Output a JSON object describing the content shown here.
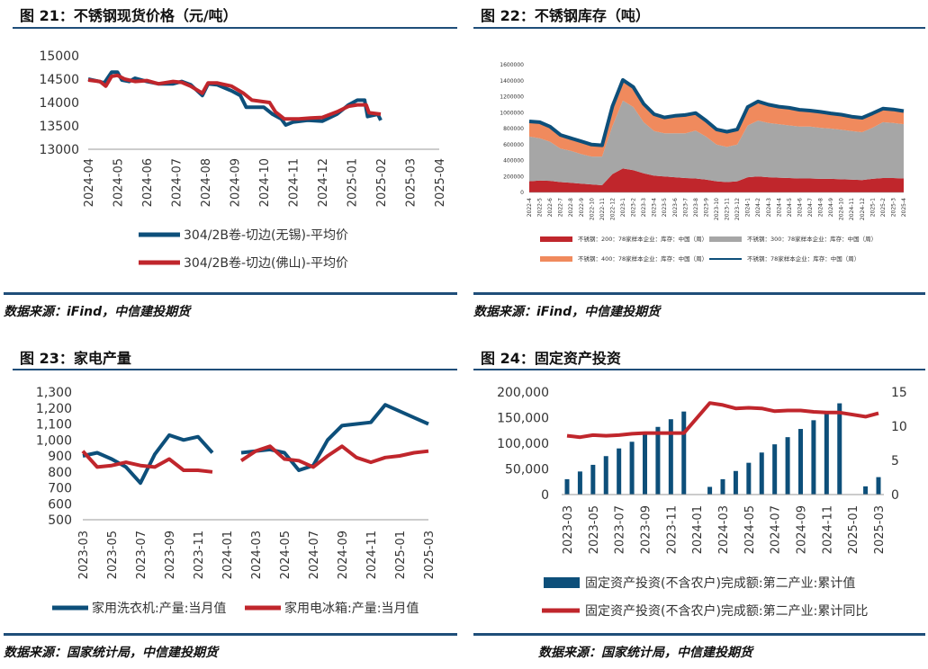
{
  "panels": {
    "p21": {
      "title": "图 21：不锈钢现货价格（元/吨）",
      "source": "数据来源：iFind，中信建投期货"
    },
    "p22": {
      "title": "图 22：不锈钢库存（吨）",
      "source": "数据来源：iFind，中信建投期货"
    },
    "p23": {
      "title": "图 23：家电产量",
      "source": "数据来源：国家统计局，中信建投期货"
    },
    "p24": {
      "title": "图 24：固定资产投资",
      "source": "数据来源：国家统计局，中信建投期货"
    }
  },
  "colors": {
    "navy": "#0d4f7a",
    "red": "#c0262c",
    "gray": "#a6a6a6",
    "orange": "#f08a5d",
    "rule": "#1f4e79"
  },
  "chart_data": [
    {
      "id": "c21",
      "type": "line",
      "x": [
        "2024-04",
        "2024-05",
        "2024-06",
        "2024-07",
        "2024-08",
        "2024-09",
        "2024-10",
        "2024-11",
        "2024-12",
        "2025-01",
        "2025-02",
        "2025-03",
        "2025-04"
      ],
      "ylim": [
        13000,
        15000
      ],
      "yticks": [
        13000,
        13500,
        14000,
        14500,
        15000
      ],
      "series": [
        {
          "name": "304/2B卷-切边(无锡)-平均价",
          "color": "#0d4f7a",
          "values": [
            [
              0,
              14500
            ],
            [
              0.3,
              14460
            ],
            [
              0.55,
              14420
            ],
            [
              0.8,
              14650
            ],
            [
              1.0,
              14650
            ],
            [
              1.15,
              14480
            ],
            [
              1.4,
              14450
            ],
            [
              1.6,
              14520
            ],
            [
              2.0,
              14450
            ],
            [
              2.4,
              14400
            ],
            [
              2.9,
              14400
            ],
            [
              3.2,
              14450
            ],
            [
              3.5,
              14380
            ],
            [
              3.9,
              14150
            ],
            [
              4.1,
              14400
            ],
            [
              4.4,
              14380
            ],
            [
              4.9,
              14250
            ],
            [
              5.2,
              14150
            ],
            [
              5.4,
              13900
            ],
            [
              6.0,
              13900
            ],
            [
              6.3,
              13750
            ],
            [
              6.6,
              13650
            ],
            [
              6.75,
              13520
            ],
            [
              7.0,
              13580
            ],
            [
              7.5,
              13620
            ],
            [
              8.0,
              13600
            ],
            [
              8.5,
              13750
            ],
            [
              8.9,
              13950
            ],
            [
              9.2,
              14050
            ],
            [
              9.45,
              14050
            ],
            [
              9.55,
              13700
            ],
            [
              9.9,
              13750
            ],
            [
              10.0,
              13620
            ]
          ]
        },
        {
          "name": "304/2B卷-切边(佛山)-平均价",
          "color": "#c0262c",
          "values": [
            [
              0,
              14480
            ],
            [
              0.4,
              14450
            ],
            [
              0.6,
              14350
            ],
            [
              0.8,
              14560
            ],
            [
              1.0,
              14580
            ],
            [
              1.25,
              14500
            ],
            [
              1.6,
              14450
            ],
            [
              2.0,
              14470
            ],
            [
              2.4,
              14400
            ],
            [
              2.9,
              14450
            ],
            [
              3.2,
              14430
            ],
            [
              3.5,
              14350
            ],
            [
              3.9,
              14200
            ],
            [
              4.1,
              14420
            ],
            [
              4.4,
              14420
            ],
            [
              4.9,
              14350
            ],
            [
              5.3,
              14200
            ],
            [
              5.6,
              14050
            ],
            [
              6.2,
              14000
            ],
            [
              6.4,
              13800
            ],
            [
              6.7,
              13650
            ],
            [
              7.2,
              13650
            ],
            [
              7.6,
              13670
            ],
            [
              8.0,
              13680
            ],
            [
              8.5,
              13800
            ],
            [
              8.9,
              13920
            ],
            [
              9.2,
              13950
            ],
            [
              9.5,
              13950
            ],
            [
              9.6,
              13780
            ],
            [
              10.0,
              13750
            ]
          ]
        }
      ]
    },
    {
      "id": "c22",
      "type": "area",
      "x": [
        "2022-4",
        "2022-5",
        "2022-6",
        "2022-7",
        "2022-8",
        "2022-9",
        "2022-10",
        "2022-11",
        "2022-12",
        "2023-1",
        "2023-2",
        "2023-3",
        "2023-4",
        "2023-5",
        "2023-6",
        "2023-7",
        "2023-8",
        "2023-9",
        "2023-10",
        "2023-11",
        "2023-12",
        "2024-1",
        "2024-2",
        "2024-3",
        "2024-4",
        "2024-5",
        "2024-6",
        "2024-7",
        "2024-8",
        "2024-9",
        "2024-10",
        "2024-11",
        "2024-12",
        "2025-1",
        "2025-2",
        "2025-3",
        "2025-4"
      ],
      "ylim": [
        0,
        1600000
      ],
      "yticks": [
        0,
        200000,
        400000,
        600000,
        800000,
        1000000,
        1200000,
        1400000,
        1600000
      ],
      "series": [
        {
          "name": "不锈钢：200：78家样本企业：库存：中国（周）",
          "color": "#c0262c",
          "values": [
            140000,
            150000,
            145000,
            130000,
            120000,
            110000,
            100000,
            90000,
            230000,
            300000,
            280000,
            240000,
            210000,
            200000,
            190000,
            180000,
            175000,
            160000,
            140000,
            130000,
            140000,
            190000,
            200000,
            190000,
            185000,
            180000,
            175000,
            175000,
            170000,
            170000,
            165000,
            160000,
            155000,
            170000,
            180000,
            180000,
            175000
          ]
        },
        {
          "name": "不锈钢：300：78家样本企业：库存：中国（周）",
          "color": "#a6a6a6",
          "values": [
            560000,
            530000,
            490000,
            420000,
            400000,
            370000,
            350000,
            360000,
            600000,
            850000,
            790000,
            640000,
            560000,
            540000,
            550000,
            560000,
            600000,
            540000,
            460000,
            440000,
            460000,
            650000,
            700000,
            680000,
            670000,
            660000,
            650000,
            650000,
            640000,
            630000,
            620000,
            610000,
            600000,
            640000,
            700000,
            690000,
            680000
          ]
        },
        {
          "name": "不锈钢：400：78家样本企业：库存：中国（周）",
          "color": "#f08a5d",
          "values": [
            190000,
            200000,
            190000,
            170000,
            160000,
            160000,
            150000,
            140000,
            250000,
            260000,
            250000,
            230000,
            210000,
            200000,
            220000,
            230000,
            220000,
            200000,
            190000,
            190000,
            190000,
            230000,
            240000,
            230000,
            220000,
            220000,
            210000,
            200000,
            200000,
            190000,
            190000,
            180000,
            180000,
            180000,
            170000,
            170000,
            165000
          ]
        }
      ],
      "total": {
        "name": "不锈钢：78家样本企业：库存：中国（周）",
        "color": "#0d4f7a",
        "values": [
          890000,
          880000,
          825000,
          720000,
          680000,
          640000,
          600000,
          590000,
          1080000,
          1410000,
          1320000,
          1110000,
          980000,
          940000,
          960000,
          970000,
          995000,
          900000,
          790000,
          760000,
          790000,
          1070000,
          1140000,
          1100000,
          1075000,
          1060000,
          1035000,
          1025000,
          1010000,
          990000,
          975000,
          950000,
          935000,
          990000,
          1050000,
          1040000,
          1020000
        ]
      }
    },
    {
      "id": "c23",
      "type": "line",
      "x": [
        "2023-03",
        "2023-04",
        "2023-05",
        "2023-06",
        "2023-07",
        "2023-08",
        "2023-09",
        "2023-10",
        "2023-11",
        "2023-12",
        "2024-01",
        "2024-02",
        "2024-03",
        "2024-04",
        "2024-05",
        "2024-06",
        "2024-07",
        "2024-08",
        "2024-09",
        "2024-10",
        "2024-11",
        "2024-12",
        "2025-01",
        "2025-02",
        "2025-03"
      ],
      "xticks": [
        "2023-03",
        "2023-05",
        "2023-07",
        "2023-09",
        "2023-11",
        "2024-01",
        "2024-03",
        "2024-05",
        "2024-07",
        "2024-09",
        "2024-11",
        "2025-01",
        "2025-03"
      ],
      "ylim": [
        500,
        1300
      ],
      "yticks": [
        "500",
        "600",
        "700",
        "800",
        "900",
        "1,000",
        "1,100",
        "1,200",
        "1,300"
      ],
      "series": [
        {
          "name": "家用洗衣机:产量:当月值",
          "color": "#0d4f7a",
          "values": [
            900,
            920,
            880,
            830,
            730,
            910,
            1030,
            1000,
            1020,
            920,
            null,
            920,
            930,
            940,
            920,
            810,
            840,
            1000,
            1090,
            1100,
            1110,
            1220,
            1180,
            1140,
            1100
          ]
        },
        {
          "name": "家用电冰箱:产量:当月值",
          "color": "#c0262c",
          "values": [
            930,
            830,
            840,
            860,
            840,
            830,
            880,
            810,
            810,
            800,
            null,
            870,
            930,
            960,
            880,
            870,
            830,
            900,
            960,
            890,
            860,
            890,
            900,
            920,
            930
          ]
        }
      ]
    },
    {
      "id": "c24",
      "type": "bar",
      "x": [
        "2023-03",
        "2023-04",
        "2023-05",
        "2023-06",
        "2023-07",
        "2023-08",
        "2023-09",
        "2023-10",
        "2023-11",
        "2023-12",
        "2024-01",
        "2024-02",
        "2024-03",
        "2024-04",
        "2024-05",
        "2024-06",
        "2024-07",
        "2024-08",
        "2024-09",
        "2024-10",
        "2024-11",
        "2024-12",
        "2025-01",
        "2025-02",
        "2025-03"
      ],
      "xticks": [
        "2023-03",
        "2023-05",
        "2023-07",
        "2023-09",
        "2023-11",
        "2024-01",
        "2024-03",
        "2024-05",
        "2024-07",
        "2024-09",
        "2024-11",
        "2025-01",
        "2025-03"
      ],
      "ylim": [
        0,
        200000
      ],
      "yticks": [
        "0",
        "50,000",
        "100,000",
        "150,000",
        "200,000"
      ],
      "y2lim": [
        0,
        15
      ],
      "y2ticks": [
        "0",
        "5",
        "10",
        "15"
      ],
      "series": [
        {
          "name": "固定资产投资(不含农户)完成额:第二产业:累计值",
          "color": "#0d4f7a",
          "axis": "left",
          "values": [
            30000,
            45000,
            58000,
            75000,
            90000,
            103000,
            118000,
            132000,
            147000,
            162000,
            null,
            15000,
            30000,
            46000,
            62000,
            82000,
            98000,
            112000,
            128000,
            145000,
            160000,
            178000,
            null,
            16000,
            34000
          ]
        },
        {
          "name": "固定资产投资(不含农户)完成额:第二产业:累计同比",
          "color": "#c0262c",
          "axis": "right",
          "values": [
            8.6,
            8.4,
            8.7,
            8.6,
            8.7,
            8.9,
            9.0,
            9.0,
            9.0,
            9.0,
            null,
            13.4,
            13.1,
            12.6,
            12.7,
            12.6,
            12.2,
            12.3,
            12.3,
            12.1,
            12.0,
            12.0,
            null,
            11.4,
            11.9
          ]
        }
      ]
    }
  ]
}
